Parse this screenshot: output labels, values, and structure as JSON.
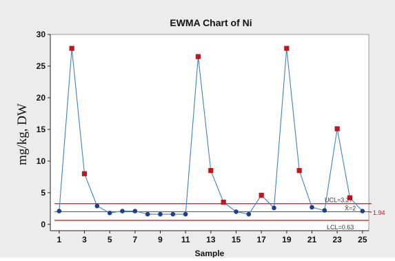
{
  "chart_data": {
    "type": "line",
    "title": "EWMA Chart of Ni",
    "xlabel": "Sample",
    "ylabel": "mg/kg, DW",
    "xlim": [
      0.3,
      25.5
    ],
    "ylim": [
      -1,
      30
    ],
    "x_ticks": [
      "1",
      "3",
      "5",
      "7",
      "9",
      "11",
      "13",
      "15",
      "17",
      "19",
      "21",
      "23",
      "25"
    ],
    "y_ticks": [
      "0",
      "5",
      "10",
      "15",
      "20",
      "25",
      "30"
    ],
    "series": [
      {
        "x": [
          1,
          2,
          3,
          4,
          5,
          6,
          7,
          8,
          9,
          10,
          11,
          12,
          13,
          14,
          15,
          16,
          17,
          18,
          19,
          20,
          21,
          22,
          23,
          24,
          25
        ],
        "values": [
          2.1,
          27.8,
          8.0,
          2.9,
          1.8,
          2.1,
          2.1,
          1.6,
          1.6,
          1.6,
          1.6,
          26.5,
          8.5,
          3.5,
          2.0,
          1.6,
          4.6,
          2.6,
          27.8,
          8.5,
          2.7,
          2.2,
          15.1,
          4.2,
          2.1
        ],
        "out_of_control": [
          false,
          true,
          true,
          false,
          false,
          false,
          false,
          false,
          false,
          false,
          false,
          true,
          true,
          true,
          false,
          false,
          true,
          false,
          true,
          true,
          false,
          false,
          true,
          true,
          false
        ],
        "color": "#3b82c4",
        "point_color": "#1f3f8a",
        "flag_color": "#c0161c"
      }
    ],
    "limits": {
      "ucl": {
        "value": 3.27,
        "label": "UCL=3.27",
        "color": "#c0161c"
      },
      "center": {
        "value": 2.0,
        "label": "X̄=2",
        "color": "#1a8a3a"
      },
      "lcl": {
        "value": 0.63,
        "label": "LCL=0.63",
        "color": "#c0161c"
      }
    },
    "side_label": "1.94",
    "grid": false,
    "legend": "none",
    "colors": {
      "panel_bg": "#ececec",
      "plot_bg": "#ffffff",
      "axis": "#222222"
    }
  }
}
